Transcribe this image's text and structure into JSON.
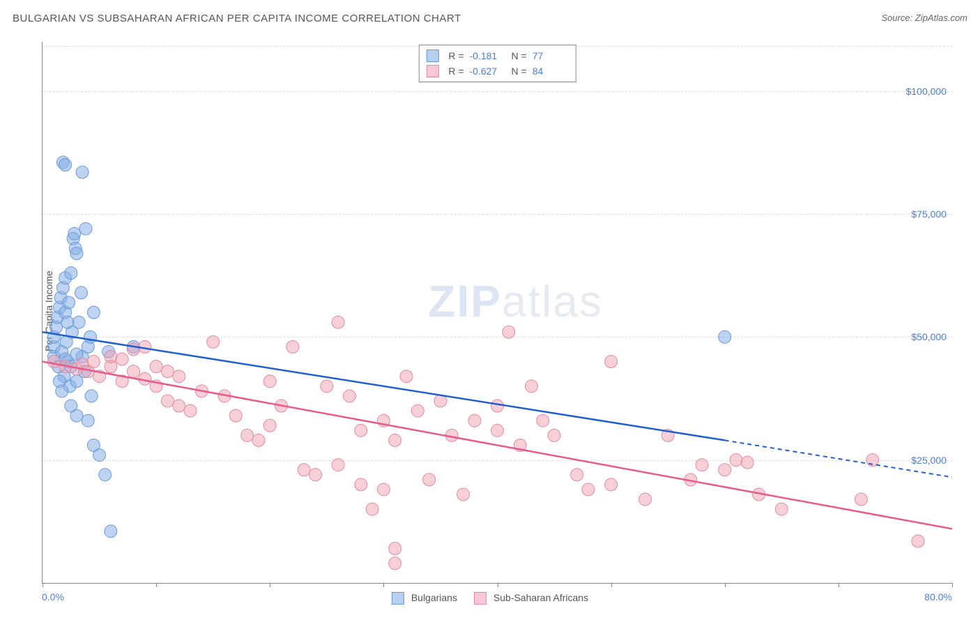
{
  "title": "BULGARIAN VS SUBSAHARAN AFRICAN PER CAPITA INCOME CORRELATION CHART",
  "source": "Source: ZipAtlas.com",
  "watermark": {
    "part1": "ZIP",
    "part2": "atlas"
  },
  "y_axis": {
    "label": "Per Capita Income",
    "min": 0,
    "max": 110000,
    "gridlines": [
      25000,
      50000,
      75000,
      100000
    ],
    "tick_labels": [
      "$25,000",
      "$50,000",
      "$75,000",
      "$100,000"
    ],
    "label_color": "#4a7fd8",
    "label_fontsize": 14
  },
  "x_axis": {
    "min": 0,
    "max": 80,
    "min_label": "0.0%",
    "max_label": "80.0%",
    "ticks": [
      0,
      10,
      20,
      30,
      40,
      50,
      60,
      70,
      80
    ],
    "label_color": "#4a7fd8"
  },
  "series": [
    {
      "name": "Bulgarians",
      "color_fill": "rgba(135,175,230,0.55)",
      "color_stroke": "#6a9ad8",
      "swatch_fill": "#b8d0f0",
      "swatch_border": "#6a9ad8",
      "trend_color": "#1f5fd0",
      "R": "-0.181",
      "N": "77",
      "trend": {
        "x1": 0,
        "y1": 51000,
        "x2_solid": 60,
        "y2_solid": 29000,
        "x2_dash": 80,
        "y2_dash": 21500
      },
      "marker_radius": 9,
      "points": [
        [
          1,
          46000
        ],
        [
          1,
          48000
        ],
        [
          1,
          50000
        ],
        [
          1.2,
          52000
        ],
        [
          1.3,
          54000
        ],
        [
          1.4,
          44000
        ],
        [
          1.5,
          56000
        ],
        [
          1.6,
          58000
        ],
        [
          1.7,
          47000
        ],
        [
          1.8,
          60000
        ],
        [
          1.9,
          42000
        ],
        [
          2,
          55000
        ],
        [
          2,
          62000
        ],
        [
          2.1,
          49000
        ],
        [
          2.2,
          45000
        ],
        [
          2.3,
          57000
        ],
        [
          2.4,
          40000
        ],
        [
          2.5,
          63000
        ],
        [
          2.6,
          51000
        ],
        [
          2.7,
          70000
        ],
        [
          2.8,
          71000
        ],
        [
          2.9,
          68000
        ],
        [
          3,
          67000
        ],
        [
          3,
          41000
        ],
        [
          3.2,
          53000
        ],
        [
          3.4,
          59000
        ],
        [
          3.5,
          46000
        ],
        [
          3.7,
          43000
        ],
        [
          3.8,
          72000
        ],
        [
          4,
          48000
        ],
        [
          4.2,
          50000
        ],
        [
          4.3,
          38000
        ],
        [
          4.5,
          55000
        ],
        [
          1.8,
          85500
        ],
        [
          2,
          85000
        ],
        [
          3.5,
          83500
        ],
        [
          2.5,
          36000
        ],
        [
          3,
          34000
        ],
        [
          4,
          33000
        ],
        [
          4.5,
          28000
        ],
        [
          5,
          26000
        ],
        [
          5.5,
          22000
        ],
        [
          2,
          45500
        ],
        [
          2.5,
          44000
        ],
        [
          3,
          46500
        ],
        [
          1.5,
          41000
        ],
        [
          1.7,
          39000
        ],
        [
          6,
          10500
        ],
        [
          5.8,
          47000
        ],
        [
          8,
          48000
        ],
        [
          60,
          50000
        ],
        [
          2.2,
          53000
        ]
      ]
    },
    {
      "name": "Sub-Saharan Africans",
      "color_fill": "rgba(240,160,180,0.5)",
      "color_stroke": "#e28aa0",
      "swatch_fill": "#f8c8d8",
      "swatch_border": "#e28aa0",
      "trend_color": "#e85a8a",
      "R": "-0.627",
      "N": "84",
      "trend": {
        "x1": 0,
        "y1": 45000,
        "x2_solid": 80,
        "y2_solid": 11000,
        "x2_dash": 80,
        "y2_dash": 11000
      },
      "marker_radius": 9,
      "points": [
        [
          1,
          45000
        ],
        [
          2,
          44000
        ],
        [
          3,
          43500
        ],
        [
          3.5,
          44500
        ],
        [
          4,
          43000
        ],
        [
          4.5,
          45000
        ],
        [
          5,
          42000
        ],
        [
          6,
          46000
        ],
        [
          7,
          41000
        ],
        [
          8,
          47500
        ],
        [
          9,
          48000
        ],
        [
          10,
          40000
        ],
        [
          10,
          44000
        ],
        [
          11,
          43000
        ],
        [
          11,
          37000
        ],
        [
          12,
          42000
        ],
        [
          12,
          36000
        ],
        [
          13,
          35000
        ],
        [
          14,
          39000
        ],
        [
          15,
          49000
        ],
        [
          16,
          38000
        ],
        [
          17,
          34000
        ],
        [
          18,
          30000
        ],
        [
          19,
          29000
        ],
        [
          20,
          32000
        ],
        [
          20,
          41000
        ],
        [
          21,
          36000
        ],
        [
          22,
          48000
        ],
        [
          23,
          23000
        ],
        [
          24,
          22000
        ],
        [
          25,
          40000
        ],
        [
          26,
          53000
        ],
        [
          26,
          24000
        ],
        [
          27,
          38000
        ],
        [
          28,
          20000
        ],
        [
          28,
          31000
        ],
        [
          29,
          15000
        ],
        [
          30,
          33000
        ],
        [
          30,
          19000
        ],
        [
          31,
          29000
        ],
        [
          32,
          42000
        ],
        [
          33,
          35000
        ],
        [
          34,
          21000
        ],
        [
          35,
          37000
        ],
        [
          36,
          30000
        ],
        [
          37,
          18000
        ],
        [
          38,
          33000
        ],
        [
          40,
          36000
        ],
        [
          40,
          31000
        ],
        [
          41,
          51000
        ],
        [
          42,
          28000
        ],
        [
          43,
          40000
        ],
        [
          44,
          33000
        ],
        [
          45,
          30000
        ],
        [
          47,
          22000
        ],
        [
          48,
          19000
        ],
        [
          50,
          45000
        ],
        [
          50,
          20000
        ],
        [
          53,
          17000
        ],
        [
          55,
          30000
        ],
        [
          57,
          21000
        ],
        [
          58,
          24000
        ],
        [
          60,
          23000
        ],
        [
          61,
          25000
        ],
        [
          62,
          24500
        ],
        [
          63,
          18000
        ],
        [
          65,
          15000
        ],
        [
          72,
          17000
        ],
        [
          73,
          25000
        ],
        [
          77,
          8500
        ],
        [
          31,
          7000
        ],
        [
          31,
          4000
        ],
        [
          6,
          44000
        ],
        [
          7,
          45500
        ],
        [
          8,
          43000
        ],
        [
          9,
          41500
        ]
      ]
    }
  ],
  "bottom_legend": [
    {
      "label": "Bulgarians"
    },
    {
      "label": "Sub-Saharan Africans"
    }
  ],
  "styling": {
    "background": "#ffffff",
    "axis_color": "#888888",
    "grid_color": "#dddddd",
    "title_color": "#555555",
    "title_fontsize": 15
  }
}
